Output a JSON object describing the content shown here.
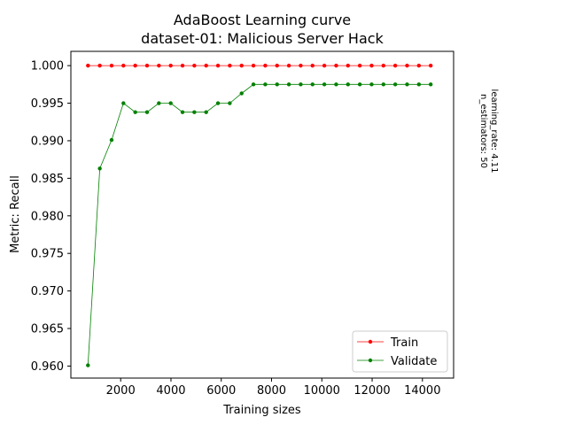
{
  "chart_data": {
    "type": "line",
    "title": "AdaBoost Learning curve",
    "subtitle": "dataset-01: Malicious Server Hack",
    "xlabel": "Training sizes",
    "ylabel": "Metric: Recall",
    "side_note": [
      "n_estimators: 50",
      "learning_rate: 4.11"
    ],
    "xlim": [
      20,
      15240
    ],
    "ylim": [
      0.9584,
      1.0019
    ],
    "xticks": [
      2000,
      4000,
      6000,
      8000,
      10000,
      12000,
      14000
    ],
    "xtick_labels": [
      "2000",
      "4000",
      "6000",
      "8000",
      "10000",
      "12000",
      "14000"
    ],
    "yticks": [
      0.96,
      0.965,
      0.97,
      0.975,
      0.98,
      0.985,
      0.99,
      0.995,
      1.0
    ],
    "ytick_labels": [
      "0.960",
      "0.965",
      "0.970",
      "0.975",
      "0.980",
      "0.985",
      "0.990",
      "0.995",
      "1.000"
    ],
    "legend_position": "lower right",
    "grid": false,
    "x": [
      700,
      1170,
      1640,
      2110,
      2580,
      3050,
      3520,
      3990,
      4460,
      4930,
      5400,
      5870,
      6340,
      6810,
      7280,
      7750,
      8220,
      8690,
      9160,
      9630,
      10100,
      10570,
      11040,
      11510,
      11980,
      12450,
      12920,
      13390,
      13860,
      14330
    ],
    "series": [
      {
        "name": "Train",
        "color": "#ff0000",
        "values": [
          1.0,
          1.0,
          1.0,
          1.0,
          1.0,
          1.0,
          1.0,
          1.0,
          1.0,
          1.0,
          1.0,
          1.0,
          1.0,
          1.0,
          1.0,
          1.0,
          1.0,
          1.0,
          1.0,
          1.0,
          1.0,
          1.0,
          1.0,
          1.0,
          1.0,
          1.0,
          1.0,
          1.0,
          1.0,
          1.0
        ]
      },
      {
        "name": "Validate",
        "color": "#008000",
        "values": [
          0.9601,
          0.9863,
          0.9901,
          0.995,
          0.9938,
          0.9938,
          0.995,
          0.995,
          0.9938,
          0.9938,
          0.9938,
          0.995,
          0.995,
          0.9963,
          0.9975,
          0.9975,
          0.9975,
          0.9975,
          0.9975,
          0.9975,
          0.9975,
          0.9975,
          0.9975,
          0.9975,
          0.9975,
          0.9975,
          0.9975,
          0.9975,
          0.9975,
          0.9975
        ]
      }
    ]
  }
}
